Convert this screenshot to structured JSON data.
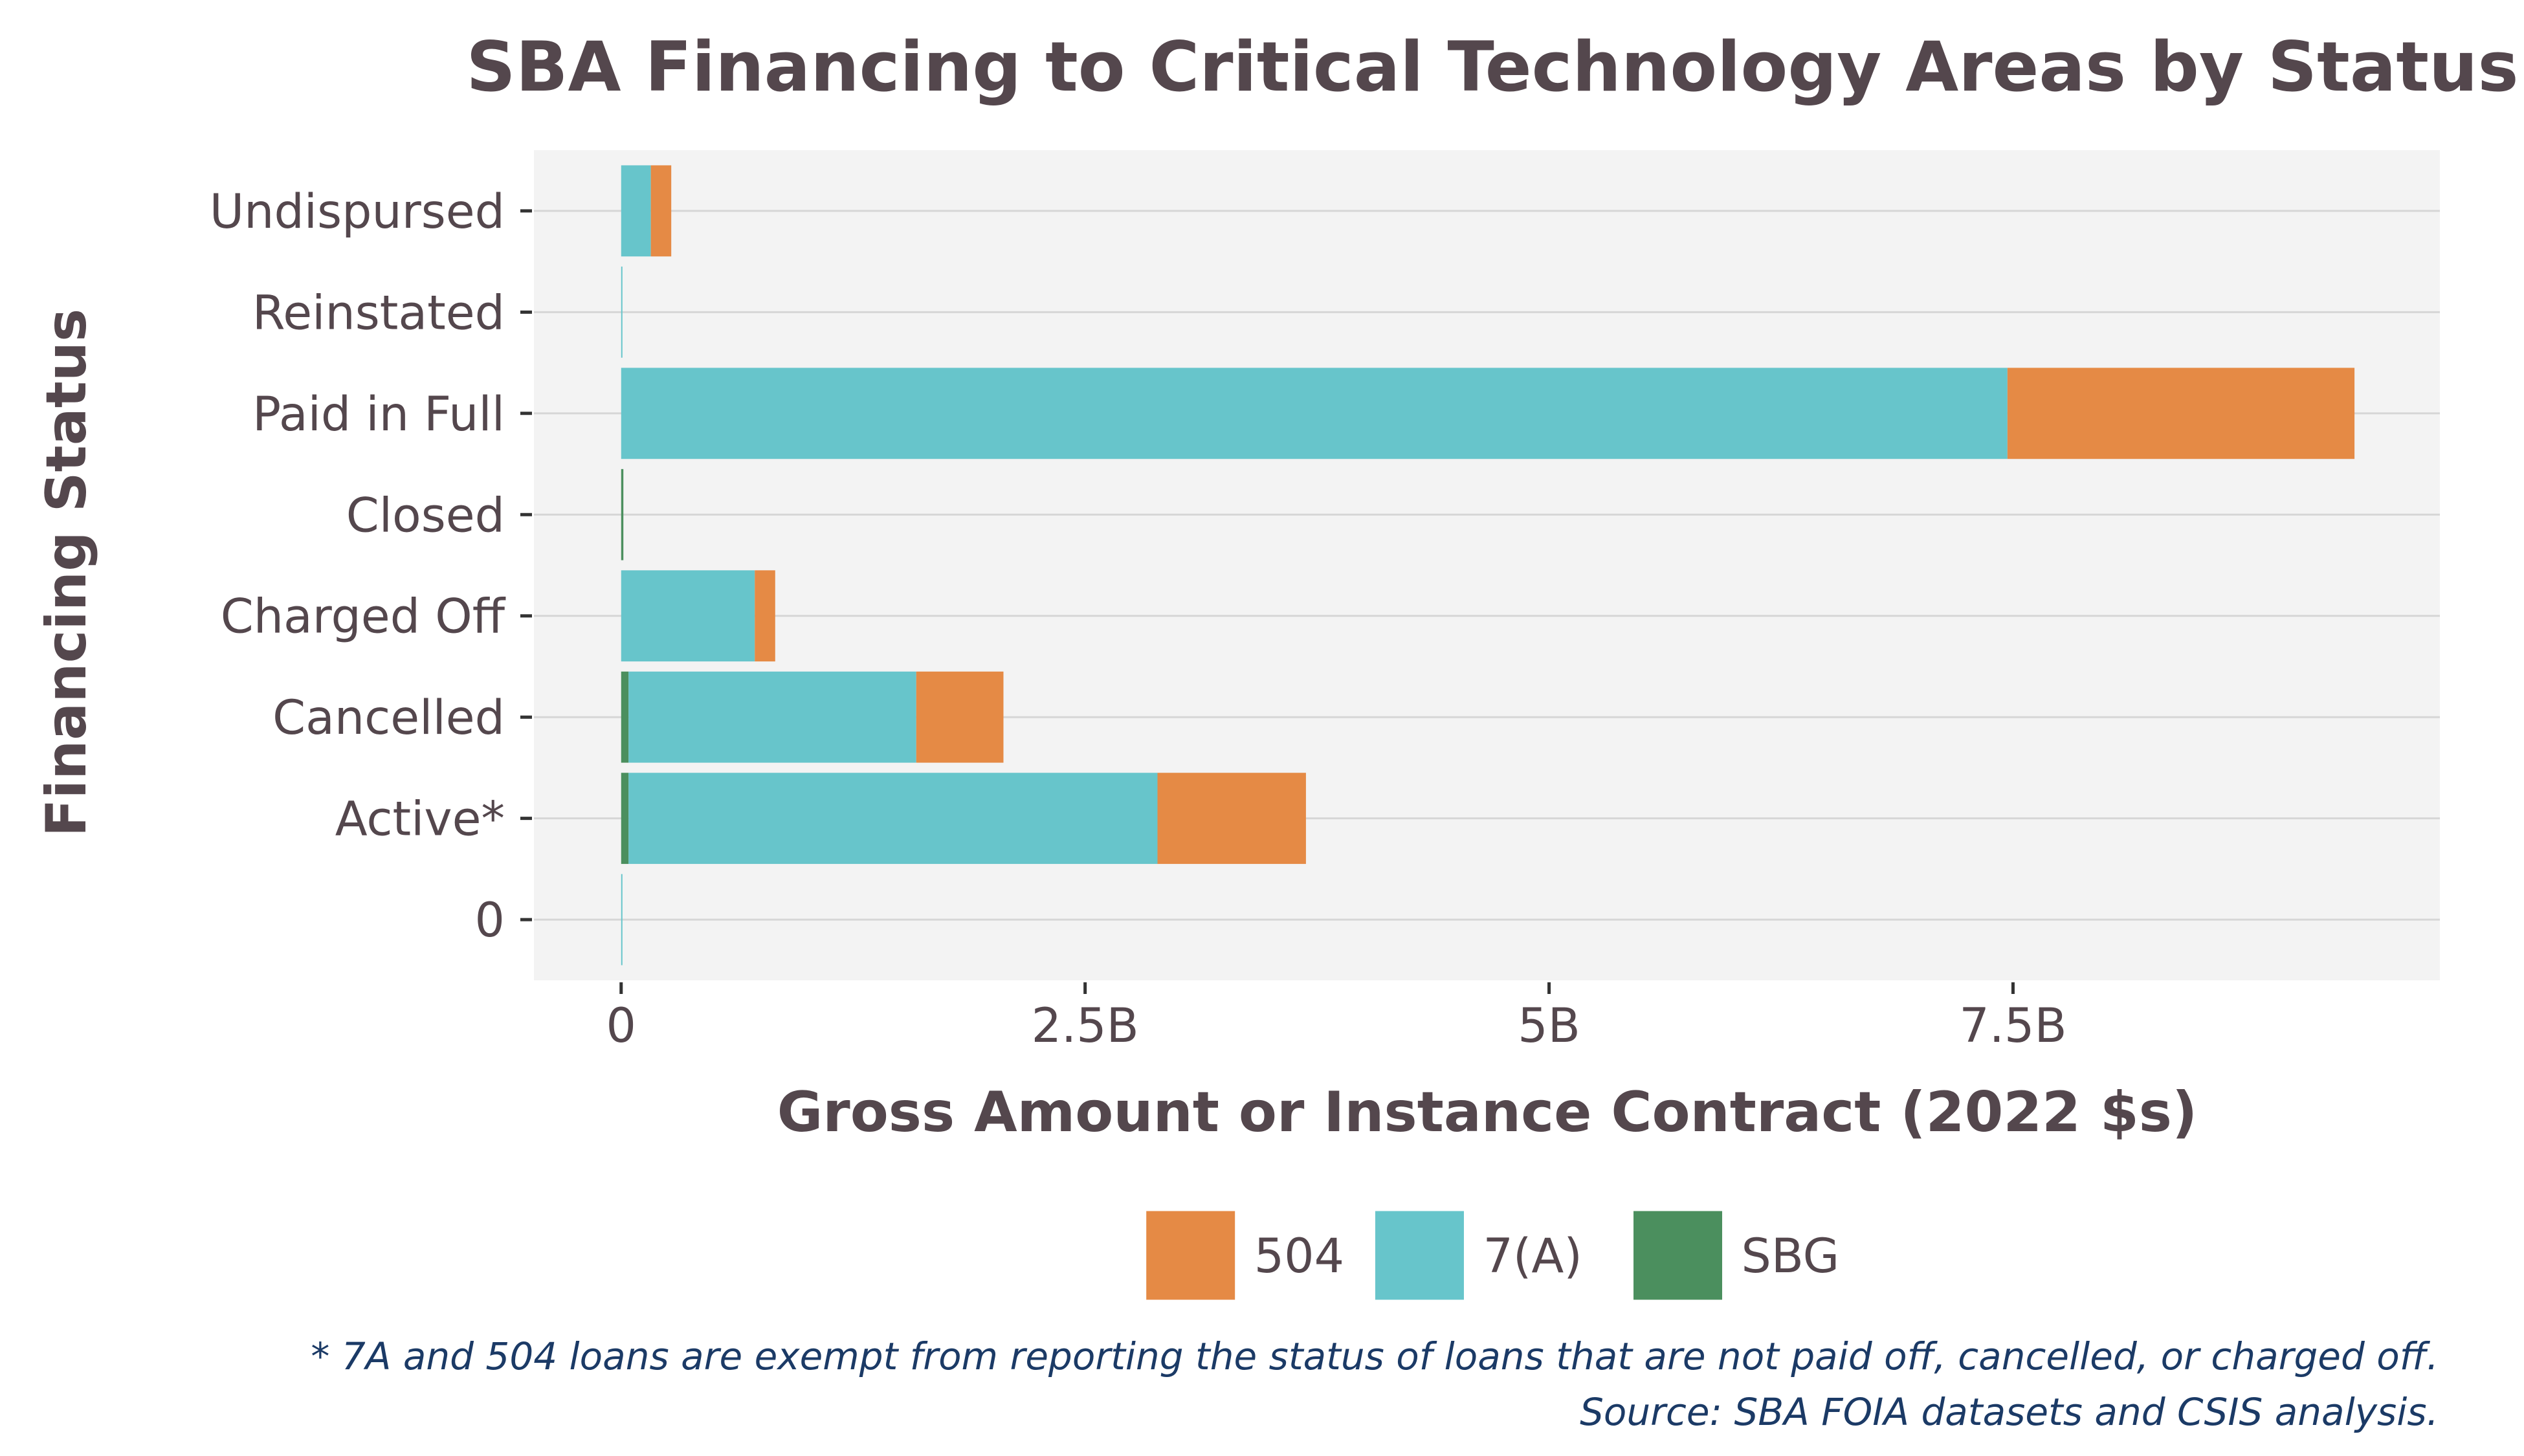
{
  "chart_data": {
    "type": "bar",
    "orientation": "horizontal",
    "stacked": true,
    "title": "SBA Financing to Critical Technology Areas by Status",
    "xlabel": "Gross Amount or Instance Contract (2022 $s)",
    "ylabel": "Financing Status",
    "categories": [
      "0",
      "Active*",
      "Cancelled",
      "Charged Off",
      "Closed",
      "Paid in Full",
      "Reinstated",
      "Undispursed"
    ],
    "xlim": [
      -0.47,
      9.8
    ],
    "xticks": [
      0,
      2.5,
      5,
      7.5
    ],
    "xtick_labels": [
      "0",
      "2.5B",
      "5B",
      "7.5B"
    ],
    "value_unit": "billions of 2022 dollars",
    "stack_order": [
      "SBG",
      "7(A)",
      "504"
    ],
    "series": [
      {
        "name": "504",
        "color": "#e58a45",
        "values": [
          0.0,
          0.8,
          0.47,
          0.11,
          0.0,
          1.87,
          0.0,
          0.11
        ]
      },
      {
        "name": "7(A)",
        "color": "#67c5cb",
        "values": [
          0.003,
          2.85,
          1.55,
          0.72,
          0.0,
          7.47,
          0.003,
          0.16
        ]
      },
      {
        "name": "SBG",
        "color": "#4b8f5e",
        "values": [
          0.0,
          0.04,
          0.04,
          0.0,
          0.012,
          0.0,
          0.0,
          0.0
        ]
      }
    ],
    "legend": {
      "position": "bottom",
      "order": [
        "504",
        "7(A)",
        "SBG"
      ]
    },
    "grid": {
      "major_y": true,
      "major_x": false
    },
    "panel_background": "#f3f3f3",
    "caption": [
      "* 7A and 504 loans are exempt from reporting the status of loans that are not paid off, cancelled, or charged off.",
      "Source: SBA FOIA datasets and CSIS analysis."
    ]
  }
}
